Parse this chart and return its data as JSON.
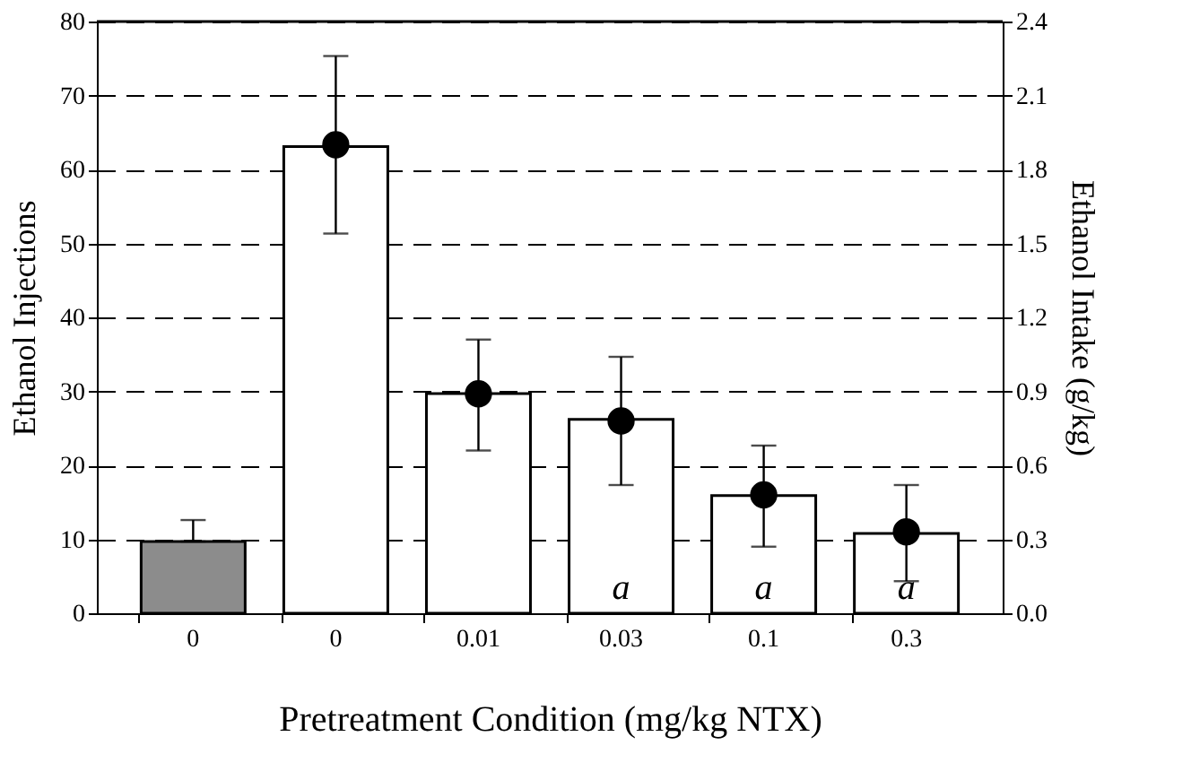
{
  "chart_data": {
    "type": "bar",
    "xlabel": "Pretreatment Condition (mg/kg NTX)",
    "ylabel": "Ethanol Injections",
    "y2label": "Ethanol Intake (g/kg)",
    "categories": [
      "0",
      "0",
      "0.01",
      "0.03",
      "0.1",
      "0.3"
    ],
    "series": [
      {
        "colors": [
          "#8c8c8c",
          "#ffffff",
          "#ffffff",
          "#ffffff",
          "#ffffff",
          "#ffffff"
        ],
        "values": [
          9.7,
          63.1,
          29.7,
          26.2,
          15.9,
          10.8
        ],
        "errors": [
          [
            9.7,
            12.6
          ],
          null,
          null,
          null,
          null,
          null
        ],
        "value_labels": [
          null,
          null,
          null,
          "a",
          "a",
          "a"
        ]
      },
      {
        "type": "scatter",
        "axis": "y2",
        "color": "#000000",
        "marker": "circle",
        "values": [
          null,
          1.9,
          0.89,
          0.78,
          0.48,
          0.33
        ],
        "errors": [
          null,
          [
            1.54,
            2.26
          ],
          [
            0.66,
            1.11
          ],
          [
            0.52,
            1.04
          ],
          [
            0.27,
            0.68
          ],
          [
            0.13,
            0.52
          ]
        ]
      }
    ],
    "ylim": [
      0,
      80
    ],
    "yticks": [
      0,
      10,
      20,
      30,
      40,
      50,
      60,
      70,
      80
    ],
    "y2lim": [
      0,
      2.4
    ],
    "y2ticks": [
      {
        "value": 0,
        "label": "0.0"
      },
      {
        "value": 0.3,
        "label": "0.3"
      },
      {
        "value": 0.6,
        "label": "0.6"
      },
      {
        "value": 0.9,
        "label": "0.9"
      },
      {
        "value": 1.2,
        "label": "1.2"
      },
      {
        "value": 1.5,
        "label": "1.5"
      },
      {
        "value": 1.8,
        "label": "1.8"
      },
      {
        "value": 2.1,
        "label": "2.1"
      },
      {
        "value": 2.4,
        "label": "2.4"
      }
    ],
    "grid": "y"
  }
}
